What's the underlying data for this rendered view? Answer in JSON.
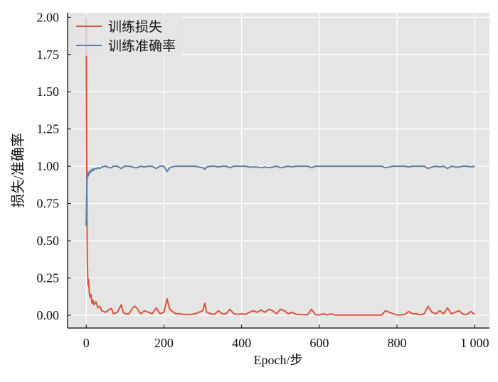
{
  "chart_data": {
    "type": "line",
    "title": "",
    "xlabel": "Epoch/步",
    "ylabel": "损失/准确率",
    "xlim": [
      -48,
      1038
    ],
    "ylim": [
      -0.086,
      2.03
    ],
    "xticks": [
      0,
      200,
      400,
      600,
      800,
      1000
    ],
    "xtick_labels": [
      "0",
      "200",
      "400",
      "600",
      "800",
      "1 000"
    ],
    "yticks": [
      0,
      0.25,
      0.5,
      0.75,
      1.0,
      1.25,
      1.5,
      1.75,
      2.0
    ],
    "ytick_labels": [
      "0.00",
      "0.25",
      "0.50",
      "0.75",
      "1.00",
      "1.25",
      "1.50",
      "1.75",
      "2.00"
    ],
    "grid": true,
    "legend_position": "top-left",
    "background": "#e5e5e5",
    "series": [
      {
        "name": "训练损失",
        "color": "#d9533b",
        "points": [
          [
            0,
            2.0
          ],
          [
            1,
            1.2
          ],
          [
            2,
            0.6
          ],
          [
            3,
            0.35
          ],
          [
            4,
            0.25
          ],
          [
            5,
            0.2
          ],
          [
            6,
            0.24
          ],
          [
            8,
            0.15
          ],
          [
            10,
            0.12
          ],
          [
            12,
            0.14
          ],
          [
            15,
            0.08
          ],
          [
            18,
            0.1
          ],
          [
            20,
            0.07
          ],
          [
            25,
            0.09
          ],
          [
            30,
            0.05
          ],
          [
            35,
            0.06
          ],
          [
            40,
            0.03
          ],
          [
            50,
            0.02
          ],
          [
            60,
            0.04
          ],
          [
            65,
            0.045
          ],
          [
            70,
            0.01
          ],
          [
            80,
            0.02
          ],
          [
            90,
            0.07
          ],
          [
            95,
            0.02
          ],
          [
            100,
            0.01
          ],
          [
            110,
            0.01
          ],
          [
            120,
            0.05
          ],
          [
            125,
            0.06
          ],
          [
            130,
            0.05
          ],
          [
            140,
            0.01
          ],
          [
            150,
            0.03
          ],
          [
            160,
            0.02
          ],
          [
            170,
            0.01
          ],
          [
            180,
            0.05
          ],
          [
            190,
            0.01
          ],
          [
            200,
            0.02
          ],
          [
            208,
            0.11
          ],
          [
            215,
            0.04
          ],
          [
            220,
            0.03
          ],
          [
            230,
            0.01
          ],
          [
            240,
            0.01
          ],
          [
            250,
            0.005
          ],
          [
            260,
            0.005
          ],
          [
            270,
            0.005
          ],
          [
            280,
            0.01
          ],
          [
            290,
            0.02
          ],
          [
            300,
            0.03
          ],
          [
            305,
            0.08
          ],
          [
            310,
            0.02
          ],
          [
            320,
            0.01
          ],
          [
            330,
            0.005
          ],
          [
            340,
            0.03
          ],
          [
            350,
            0.01
          ],
          [
            360,
            0.01
          ],
          [
            370,
            0.04
          ],
          [
            380,
            0.01
          ],
          [
            390,
            0.005
          ],
          [
            400,
            0.01
          ],
          [
            410,
            0.005
          ],
          [
            420,
            0.02
          ],
          [
            430,
            0.03
          ],
          [
            440,
            0.02
          ],
          [
            450,
            0.035
          ],
          [
            460,
            0.02
          ],
          [
            470,
            0.04
          ],
          [
            480,
            0.03
          ],
          [
            490,
            0.01
          ],
          [
            500,
            0.04
          ],
          [
            510,
            0.03
          ],
          [
            520,
            0.01
          ],
          [
            530,
            0.02
          ],
          [
            540,
            0.005
          ],
          [
            550,
            0.005
          ],
          [
            560,
            0.003
          ],
          [
            570,
            0.003
          ],
          [
            580,
            0.04
          ],
          [
            590,
            0.003
          ],
          [
            600,
            0.002
          ],
          [
            610,
            0.01
          ],
          [
            620,
            0.002
          ],
          [
            630,
            0.01
          ],
          [
            640,
            0.001
          ],
          [
            680,
            0.001
          ],
          [
            720,
            0.001
          ],
          [
            760,
            0.001
          ],
          [
            770,
            0.03
          ],
          [
            780,
            0.02
          ],
          [
            790,
            0.01
          ],
          [
            800,
            0.002
          ],
          [
            810,
            0.002
          ],
          [
            820,
            0.005
          ],
          [
            830,
            0.025
          ],
          [
            840,
            0.01
          ],
          [
            850,
            0.01
          ],
          [
            860,
            0.003
          ],
          [
            870,
            0.01
          ],
          [
            880,
            0.06
          ],
          [
            890,
            0.02
          ],
          [
            900,
            0.01
          ],
          [
            910,
            0.03
          ],
          [
            920,
            0.01
          ],
          [
            930,
            0.05
          ],
          [
            940,
            0.01
          ],
          [
            950,
            0.02
          ],
          [
            960,
            0.03
          ],
          [
            970,
            0.005
          ],
          [
            980,
            0.005
          ],
          [
            990,
            0.025
          ],
          [
            1000,
            0.005
          ]
        ]
      },
      {
        "name": "训练准确率",
        "color": "#5a7fa8",
        "points": [
          [
            0,
            0.6
          ],
          [
            1,
            0.8
          ],
          [
            2,
            0.92
          ],
          [
            3,
            0.95
          ],
          [
            4,
            0.93
          ],
          [
            5,
            0.96
          ],
          [
            6,
            0.94
          ],
          [
            8,
            0.96
          ],
          [
            10,
            0.97
          ],
          [
            12,
            0.96
          ],
          [
            15,
            0.98
          ],
          [
            18,
            0.97
          ],
          [
            20,
            0.985
          ],
          [
            25,
            0.98
          ],
          [
            30,
            0.99
          ],
          [
            35,
            0.985
          ],
          [
            40,
            0.995
          ],
          [
            50,
            1.0
          ],
          [
            60,
            0.99
          ],
          [
            65,
            0.99
          ],
          [
            70,
            1.0
          ],
          [
            80,
            1.0
          ],
          [
            90,
            0.985
          ],
          [
            95,
            0.995
          ],
          [
            100,
            1.0
          ],
          [
            110,
            1.0
          ],
          [
            120,
            0.995
          ],
          [
            125,
            0.99
          ],
          [
            130,
            0.99
          ],
          [
            140,
            1.0
          ],
          [
            150,
            0.995
          ],
          [
            160,
            1.0
          ],
          [
            170,
            1.0
          ],
          [
            180,
            0.985
          ],
          [
            190,
            1.0
          ],
          [
            200,
            1.0
          ],
          [
            208,
            0.965
          ],
          [
            215,
            0.99
          ],
          [
            220,
            0.995
          ],
          [
            230,
            1.0
          ],
          [
            240,
            1.0
          ],
          [
            250,
            1.0
          ],
          [
            260,
            1.0
          ],
          [
            270,
            1.0
          ],
          [
            280,
            1.0
          ],
          [
            290,
            0.995
          ],
          [
            300,
            0.99
          ],
          [
            305,
            0.98
          ],
          [
            310,
            0.995
          ],
          [
            320,
            1.0
          ],
          [
            330,
            1.0
          ],
          [
            340,
            0.995
          ],
          [
            350,
            1.0
          ],
          [
            360,
            1.0
          ],
          [
            370,
            0.99
          ],
          [
            380,
            1.0
          ],
          [
            390,
            1.0
          ],
          [
            400,
            1.0
          ],
          [
            410,
            1.0
          ],
          [
            420,
            0.995
          ],
          [
            430,
            0.995
          ],
          [
            440,
            0.995
          ],
          [
            450,
            0.99
          ],
          [
            460,
            0.995
          ],
          [
            470,
            0.99
          ],
          [
            480,
            0.995
          ],
          [
            490,
            1.0
          ],
          [
            500,
            0.99
          ],
          [
            510,
            0.995
          ],
          [
            520,
            1.0
          ],
          [
            530,
            0.995
          ],
          [
            540,
            1.0
          ],
          [
            550,
            1.0
          ],
          [
            560,
            1.0
          ],
          [
            570,
            1.0
          ],
          [
            580,
            0.99
          ],
          [
            590,
            1.0
          ],
          [
            600,
            1.0
          ],
          [
            610,
            1.0
          ],
          [
            620,
            1.0
          ],
          [
            630,
            1.0
          ],
          [
            640,
            1.0
          ],
          [
            680,
            1.0
          ],
          [
            720,
            1.0
          ],
          [
            760,
            1.0
          ],
          [
            770,
            0.99
          ],
          [
            780,
            0.995
          ],
          [
            790,
            1.0
          ],
          [
            800,
            1.0
          ],
          [
            810,
            1.0
          ],
          [
            820,
            1.0
          ],
          [
            830,
            0.995
          ],
          [
            840,
            1.0
          ],
          [
            850,
            1.0
          ],
          [
            860,
            1.0
          ],
          [
            870,
            1.0
          ],
          [
            880,
            0.985
          ],
          [
            890,
            0.995
          ],
          [
            900,
            1.0
          ],
          [
            910,
            0.995
          ],
          [
            920,
            1.0
          ],
          [
            930,
            0.985
          ],
          [
            940,
            1.0
          ],
          [
            950,
            0.995
          ],
          [
            960,
            0.995
          ],
          [
            970,
            1.0
          ],
          [
            980,
            1.0
          ],
          [
            990,
            0.995
          ],
          [
            1000,
            1.0
          ]
        ]
      }
    ]
  }
}
